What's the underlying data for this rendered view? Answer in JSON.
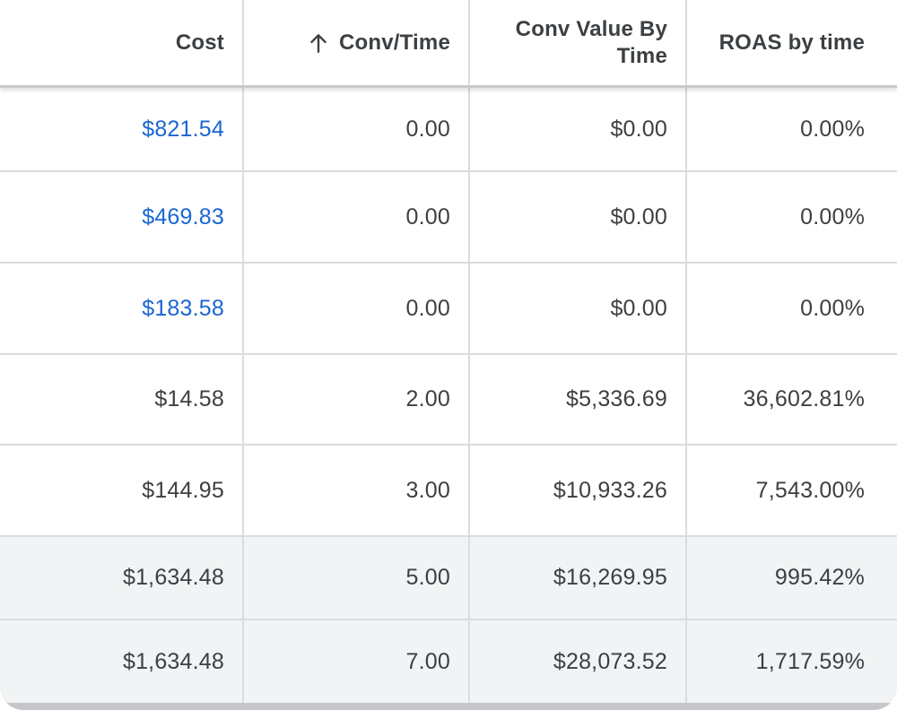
{
  "columns": {
    "cost": "Cost",
    "conv_time": "Conv/Time",
    "conv_value_line1": "Conv Value By",
    "conv_value_line2": "Time",
    "roas": "ROAS by time"
  },
  "sort": {
    "column": "conv_time",
    "direction": "ascending",
    "icon": "arrow-up-icon"
  },
  "colors": {
    "link": "#1a66d2",
    "text": "#3c4043",
    "grid": "#dadce0",
    "shaded_row": "#f1f3f4"
  },
  "rows": [
    {
      "cost": "$821.54",
      "conv_time": "0.00",
      "conv_value": "$0.00",
      "roas": "0.00%"
    },
    {
      "cost": "$469.83",
      "conv_time": "0.00",
      "conv_value": "$0.00",
      "roas": "0.00%"
    },
    {
      "cost": "$183.58",
      "conv_time": "0.00",
      "conv_value": "$0.00",
      "roas": "0.00%"
    },
    {
      "cost": "$14.58",
      "conv_time": "2.00",
      "conv_value": "$5,336.69",
      "roas": "36,602.81%"
    },
    {
      "cost": "$144.95",
      "conv_time": "3.00",
      "conv_value": "$10,933.26",
      "roas": "7,543.00%"
    },
    {
      "cost": "$1,634.48",
      "conv_time": "5.00",
      "conv_value": "$16,269.95",
      "roas": "995.42%"
    },
    {
      "cost": "$1,634.48",
      "conv_time": "7.00",
      "conv_value": "$28,073.52",
      "roas": "1,717.59%"
    }
  ]
}
